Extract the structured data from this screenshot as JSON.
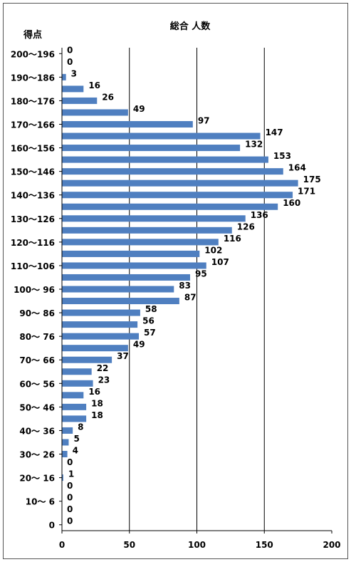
{
  "chart_data": {
    "type": "bar",
    "orientation": "horizontal",
    "title": "総合 人数",
    "ylabel": "得点",
    "xlabel": "",
    "xlim": [
      0,
      200
    ],
    "x_ticks": [
      "0",
      "50",
      "100",
      "150",
      "200"
    ],
    "grid": true,
    "bar_color": "#4f7fc0",
    "category_labels": [
      "200〜196",
      "190〜186",
      "180〜176",
      "170〜166",
      "160〜156",
      "150〜146",
      "140〜136",
      "130〜126",
      "120〜116",
      "110〜106",
      "100〜 96",
      "90〜 86",
      "80〜 76",
      "70〜 66",
      "60〜 56",
      "50〜 46",
      "40〜 36",
      "30〜 26",
      "20〜 16",
      "10〜 6",
      "0"
    ],
    "values": [
      0,
      0,
      3,
      16,
      26,
      49,
      97,
      147,
      132,
      153,
      164,
      175,
      171,
      160,
      136,
      126,
      116,
      102,
      107,
      95,
      83,
      87,
      58,
      56,
      57,
      49,
      37,
      22,
      23,
      16,
      18,
      18,
      8,
      5,
      4,
      0,
      1,
      0,
      0,
      0,
      0
    ]
  }
}
